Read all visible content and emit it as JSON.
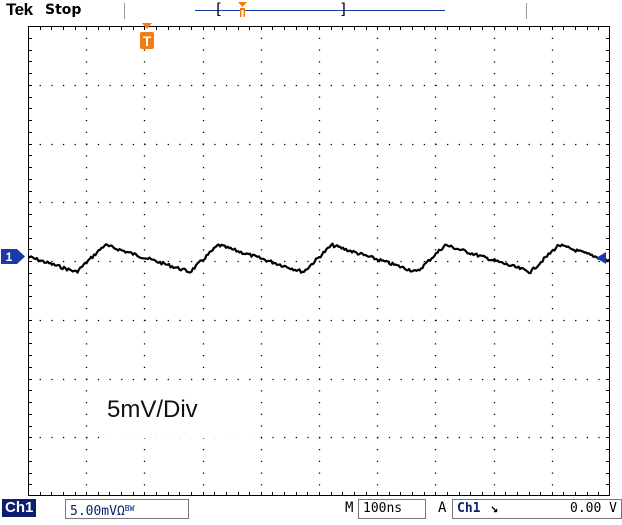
{
  "top_bar": {
    "brand": "Tek",
    "run_state": "Stop"
  },
  "colors": {
    "trace": "#000000",
    "grid": "#000000",
    "trigger_marker": "#f07c12",
    "channel_marker": "#1a3aa8",
    "badge": "#0a1f6e"
  },
  "graticule": {
    "divisions_x": 10,
    "divisions_y": 8
  },
  "markers": {
    "channel_marker_label": "1",
    "trigger_marker_label": "T"
  },
  "annotation": "5mV/Div",
  "bottom_bar": {
    "channel_label": "Ch1",
    "volts_per_div": "5.00mV",
    "coupling_symbol": "Ω",
    "bw_symbol": "BW",
    "mode_label": "M",
    "time_per_div": "100ns",
    "trigger_mode": "A",
    "trigger_source": "Ch1",
    "trigger_slope": "↘",
    "trigger_level": "0.00 V"
  },
  "icons": {
    "trigger_position": "trigger-position-icon",
    "channel": "channel-1-marker-icon",
    "trigger_level": "trigger-level-arrow-icon"
  }
}
